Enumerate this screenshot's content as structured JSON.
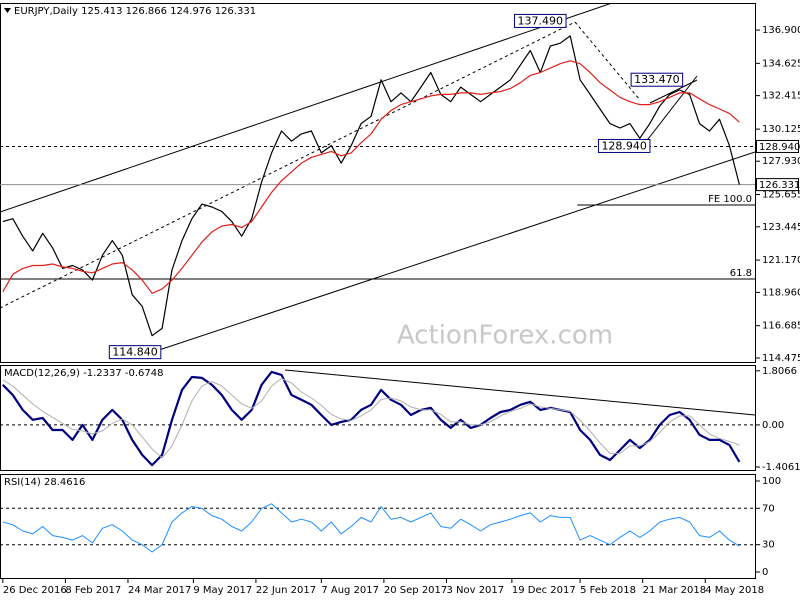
{
  "chart_data": {
    "type": "line",
    "watermark": "ActionForex.com",
    "x": [
      "2016-12-26",
      "2017-01-02",
      "2017-01-09",
      "2017-01-16",
      "2017-01-23",
      "2017-01-30",
      "2017-02-06",
      "2017-02-13",
      "2017-02-20",
      "2017-02-27",
      "2017-03-06",
      "2017-03-13",
      "2017-03-20",
      "2017-03-27",
      "2017-04-03",
      "2017-04-10",
      "2017-04-17",
      "2017-04-24",
      "2017-05-01",
      "2017-05-08",
      "2017-05-15",
      "2017-05-22",
      "2017-05-29",
      "2017-06-05",
      "2017-06-12",
      "2017-06-19",
      "2017-06-26",
      "2017-07-03",
      "2017-07-10",
      "2017-07-17",
      "2017-07-24",
      "2017-07-31",
      "2017-08-07",
      "2017-08-14",
      "2017-08-21",
      "2017-08-28",
      "2017-09-04",
      "2017-09-11",
      "2017-09-18",
      "2017-09-25",
      "2017-10-02",
      "2017-10-09",
      "2017-10-16",
      "2017-10-23",
      "2017-10-30",
      "2017-11-06",
      "2017-11-13",
      "2017-11-20",
      "2017-11-27",
      "2017-12-04",
      "2017-12-11",
      "2017-12-18",
      "2017-12-25",
      "2018-01-01",
      "2018-01-08",
      "2018-01-15",
      "2018-01-22",
      "2018-01-29",
      "2018-02-05",
      "2018-02-12",
      "2018-02-19",
      "2018-02-26",
      "2018-03-05",
      "2018-03-12",
      "2018-03-19",
      "2018-03-26",
      "2018-04-02",
      "2018-04-09",
      "2018-04-16",
      "2018-04-23",
      "2018-04-30",
      "2018-05-07",
      "2018-05-14",
      "2018-05-21",
      "2018-05-28"
    ],
    "xlim": [
      "2016-12-24",
      "2018-06-08"
    ],
    "xticks": [
      {
        "value": "2016-12-26",
        "label": "26 Dec 2016"
      },
      {
        "value": "2017-02-08",
        "label": "8 Feb 2017"
      },
      {
        "value": "2017-03-24",
        "label": "24 Mar 2017"
      },
      {
        "value": "2017-05-09",
        "label": "9 May 2017"
      },
      {
        "value": "2017-06-22",
        "label": "22 Jun 2017"
      },
      {
        "value": "2017-08-07",
        "label": "7 Aug 2017"
      },
      {
        "value": "2017-09-20",
        "label": "20 Sep 2017"
      },
      {
        "value": "2017-11-03",
        "label": "3 Nov 2017"
      },
      {
        "value": "2017-12-19",
        "label": "19 Dec 2017"
      },
      {
        "value": "2018-02-05",
        "label": "5 Feb 2018"
      },
      {
        "value": "2018-03-21",
        "label": "21 Mar 2018"
      },
      {
        "value": "2018-05-04",
        "label": "4 May 2018"
      }
    ],
    "panels": [
      {
        "title": "EURJPY,Daily 125.413 126.866 124.976 126.331",
        "ylim": [
          114.2,
          138.75
        ],
        "yticks": [
          {
            "value": 136.9,
            "label": "136.900"
          },
          134.625,
          132.415,
          130.125,
          {
            "value": 127.93,
            "label": "127.930"
          },
          125.655,
          123.445,
          {
            "value": 121.17,
            "label": "121.170"
          },
          {
            "value": 118.96,
            "label": "118.960"
          },
          116.685,
          114.475
        ],
        "series": [
          {
            "color": "#000000",
            "width": 1.2,
            "values": [
              123.8,
              124.0,
              122.8,
              121.8,
              123.0,
              122.0,
              120.6,
              120.8,
              120.5,
              119.8,
              121.5,
              122.5,
              121.5,
              118.8,
              118.0,
              116.0,
              116.5,
              120.5,
              122.5,
              124.0,
              125.0,
              124.8,
              124.5,
              123.8,
              122.8,
              124.0,
              126.5,
              128.5,
              130.0,
              129.3,
              129.8,
              130.0,
              128.5,
              129.0,
              127.8,
              129.0,
              130.5,
              131.0,
              133.5,
              132.0,
              132.6,
              132.0,
              133.0,
              134.0,
              132.5,
              132.0,
              133.0,
              132.5,
              132.0,
              132.5,
              133.0,
              133.5,
              134.5,
              135.5,
              134.0,
              135.8,
              136.0,
              136.5,
              133.5,
              132.5,
              131.5,
              130.5,
              130.2,
              130.5,
              129.5,
              130.5,
              131.7,
              132.5,
              132.8,
              132.5,
              130.5,
              130.0,
              130.8,
              129.0,
              126.331
            ]
          },
          {
            "color": "#e0201b",
            "width": 1.2,
            "values": [
              119.0,
              120.2,
              120.6,
              120.8,
              120.8,
              120.9,
              120.7,
              120.6,
              120.4,
              120.3,
              120.6,
              120.9,
              121.0,
              120.5,
              119.8,
              118.9,
              119.2,
              119.8,
              120.6,
              121.5,
              122.4,
              123.1,
              123.5,
              123.6,
              123.4,
              123.8,
              124.8,
              125.8,
              126.6,
              127.2,
              127.8,
              128.2,
              128.4,
              128.6,
              128.3,
              128.5,
              129.2,
              129.8,
              130.8,
              131.4,
              131.8,
              132.0,
              132.2,
              132.4,
              132.5,
              132.5,
              132.6,
              132.6,
              132.5,
              132.6,
              132.7,
              132.9,
              133.3,
              133.8,
              134.0,
              134.3,
              134.6,
              134.8,
              134.6,
              134.0,
              133.3,
              132.8,
              132.3,
              132.0,
              131.8,
              131.8,
              132.0,
              132.3,
              132.6,
              132.6,
              132.2,
              131.8,
              131.5,
              131.2,
              130.6
            ]
          }
        ],
        "annotations": [
          {
            "x": "2018-01-08",
            "value": 137.49,
            "label": "137.490"
          },
          {
            "x": "2018-03-31",
            "value": 133.47,
            "label": "133.470"
          },
          {
            "x": "2018-03-08",
            "value": 128.94,
            "label": "128.940"
          },
          {
            "x": "2017-03-29",
            "value": 114.84,
            "label": "114.840"
          }
        ],
        "levels": [
          {
            "value": 128.94,
            "label": "128.940",
            "line": "dashed",
            "color": "#000000",
            "box": true
          },
          {
            "value": 126.331,
            "label": "126.331",
            "line": "solid",
            "color": "#909090",
            "box": true
          },
          {
            "value": 124.94,
            "label": "FE 100.0",
            "line": "solid",
            "color": "#000000",
            "from": "2018-02-03"
          },
          {
            "value": 119.88,
            "label": "61.8",
            "line": "solid",
            "color": "#000000"
          }
        ]
      },
      {
        "title": "MACD(12,26,9) -1.2337 -0.6748",
        "ylim": [
          -1.505,
          2.0
        ],
        "yticks": [
          1.8066,
          {
            "value": 0,
            "label": "0.00"
          },
          -1.4061
        ],
        "gridlines": [
          0
        ],
        "series": [
          {
            "color": "#00007f",
            "width": 2.2,
            "values": [
              1.34,
              1.0,
              0.5,
              0.17,
              0.23,
              -0.17,
              -0.17,
              -0.5,
              0.0,
              -0.5,
              0.17,
              0.5,
              0.17,
              -0.5,
              -1.0,
              -1.34,
              -1.0,
              0.17,
              1.17,
              1.6,
              1.57,
              1.34,
              1.0,
              0.5,
              0.17,
              0.5,
              1.34,
              1.77,
              1.67,
              1.0,
              0.84,
              0.67,
              0.33,
              0.0,
              0.1,
              0.17,
              0.5,
              0.67,
              1.17,
              0.84,
              0.67,
              0.33,
              0.5,
              0.57,
              0.17,
              -0.1,
              0.17,
              -0.1,
              0.0,
              0.23,
              0.43,
              0.5,
              0.67,
              0.77,
              0.5,
              0.57,
              0.5,
              0.43,
              -0.17,
              -0.5,
              -1.0,
              -1.17,
              -0.84,
              -0.5,
              -0.77,
              -0.5,
              0.0,
              0.33,
              0.43,
              0.17,
              -0.33,
              -0.5,
              -0.5,
              -0.67,
              -1.2337
            ]
          },
          {
            "color": "#b0b0b0",
            "width": 1,
            "values": [
              1.5,
              1.3,
              1.0,
              0.7,
              0.45,
              0.25,
              0.05,
              -0.15,
              -0.2,
              -0.3,
              -0.2,
              0.05,
              0.2,
              0.0,
              -0.4,
              -0.8,
              -1.1,
              -0.7,
              0.0,
              0.8,
              1.3,
              1.45,
              1.3,
              1.0,
              0.7,
              0.55,
              0.8,
              1.3,
              1.55,
              1.4,
              1.1,
              0.9,
              0.65,
              0.35,
              0.2,
              0.15,
              0.3,
              0.5,
              0.85,
              0.9,
              0.8,
              0.6,
              0.5,
              0.5,
              0.35,
              0.1,
              0.1,
              0.0,
              0.0,
              0.1,
              0.3,
              0.45,
              0.55,
              0.7,
              0.6,
              0.55,
              0.5,
              0.45,
              0.15,
              -0.2,
              -0.6,
              -0.95,
              -0.95,
              -0.7,
              -0.7,
              -0.55,
              -0.25,
              0.1,
              0.3,
              0.3,
              0.0,
              -0.3,
              -0.45,
              -0.55,
              -0.6748
            ]
          }
        ]
      },
      {
        "title": "RSI(14) 28.4616",
        "ylim": [
          -6.6,
          107.7
        ],
        "yticks": [
          100,
          70,
          30,
          0
        ],
        "gridlines": [
          70,
          30
        ],
        "series": [
          {
            "color": "#1e90ff",
            "width": 1,
            "values": [
              55,
              52,
              45,
              42,
              50,
              40,
              38,
              35,
              40,
              32,
              48,
              52,
              45,
              35,
              30,
              22,
              30,
              55,
              65,
              72,
              70,
              62,
              58,
              50,
              45,
              55,
              70,
              75,
              65,
              55,
              58,
              55,
              45,
              55,
              42,
              50,
              60,
              55,
              72,
              58,
              60,
              55,
              60,
              65,
              50,
              48,
              58,
              52,
              45,
              52,
              55,
              58,
              62,
              65,
              55,
              62,
              60,
              60,
              35,
              40,
              35,
              30,
              38,
              45,
              38,
              45,
              55,
              58,
              60,
              55,
              40,
              38,
              45,
              35,
              28.4616
            ]
          }
        ]
      }
    ]
  }
}
